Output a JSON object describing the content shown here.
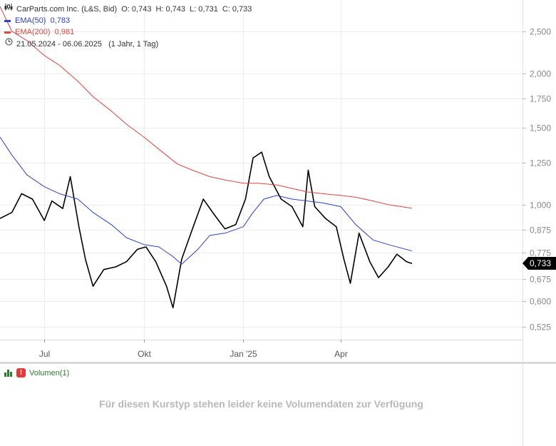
{
  "legend": {
    "title": "CarParts.com Inc. (L&S, Bid)",
    "o_label": "O:",
    "o_value": "0,743",
    "h_label": "H:",
    "h_value": "0,743",
    "l_label": "L:",
    "l_value": "0,731",
    "c_label": "C:",
    "c_value": "0,733",
    "ema50_label": "EMA(50)",
    "ema50_value": "0,783",
    "ema200_label": "EMA(200)",
    "ema200_value": "0,981",
    "range": "21.05.2024 - 06.06.2025",
    "range_info": "(1 Jahr, 1 Tag)"
  },
  "price_tag": "0,733",
  "volume": {
    "label": "Volumen(1)",
    "message": "Für diesen Kurstyp stehen leider keine Volumendaten zur Verfügung"
  },
  "colors": {
    "price": "#000000",
    "ema50": "#2a3fd6",
    "ema200": "#e8423b",
    "grid": "#ececec",
    "warn": "#e53935",
    "vol_icon": "#2e7d32"
  },
  "chart_data": {
    "type": "line",
    "y_scale": "log",
    "ylim": [
      0.49,
      2.95
    ],
    "y_ticks": [
      0.525,
      0.6,
      0.675,
      0.775,
      0.875,
      1.0,
      1.25,
      1.5,
      1.75,
      2.0,
      2.5
    ],
    "y_tick_labels": [
      "0,525",
      "0,600",
      "0,675",
      "0,775",
      "0,875",
      "1,000",
      "1,250",
      "1,500",
      "1,750",
      "2,000",
      "2,500"
    ],
    "x_range": [
      "2024-05-21",
      "2025-06-06"
    ],
    "x_ticks": [
      "2024-07-01",
      "2024-10-01",
      "2025-01-01",
      "2025-04-01"
    ],
    "x_tick_labels": [
      "Jul",
      "Okt",
      "Jan '25",
      "Apr"
    ],
    "series": [
      {
        "name": "CarParts.com Inc. (L&S, Bid)",
        "x": [
          "2024-05-21",
          "2024-06-01",
          "2024-06-10",
          "2024-06-20",
          "2024-07-01",
          "2024-07-08",
          "2024-07-18",
          "2024-07-25",
          "2024-08-02",
          "2024-08-08",
          "2024-08-15",
          "2024-08-25",
          "2024-09-05",
          "2024-09-15",
          "2024-09-25",
          "2024-10-03",
          "2024-10-12",
          "2024-10-22",
          "2024-10-28",
          "2024-11-05",
          "2024-11-15",
          "2024-11-25",
          "2024-12-05",
          "2024-12-15",
          "2024-12-25",
          "2025-01-03",
          "2025-01-10",
          "2025-01-18",
          "2025-01-25",
          "2025-02-05",
          "2025-02-15",
          "2025-02-25",
          "2025-03-02",
          "2025-03-08",
          "2025-03-18",
          "2025-03-28",
          "2025-04-04",
          "2025-04-10",
          "2025-04-18",
          "2025-04-28",
          "2025-05-06",
          "2025-05-15",
          "2025-05-23",
          "2025-06-01",
          "2025-06-06"
        ],
        "y": [
          0.93,
          0.96,
          1.06,
          1.03,
          0.92,
          1.02,
          0.98,
          1.16,
          0.89,
          0.75,
          0.65,
          0.71,
          0.72,
          0.74,
          0.79,
          0.8,
          0.74,
          0.65,
          0.58,
          0.75,
          0.88,
          1.03,
          0.95,
          0.88,
          0.9,
          1.03,
          1.28,
          1.32,
          1.16,
          1.03,
          0.99,
          0.89,
          1.2,
          0.99,
          0.93,
          0.89,
          0.75,
          0.66,
          0.86,
          0.74,
          0.68,
          0.72,
          0.77,
          0.74,
          0.733
        ]
      },
      {
        "name": "EMA(50)",
        "x": [
          "2024-05-21",
          "2024-06-01",
          "2024-06-15",
          "2024-07-01",
          "2024-07-15",
          "2024-08-01",
          "2024-08-15",
          "2024-09-01",
          "2024-09-15",
          "2024-10-01",
          "2024-10-15",
          "2024-10-28",
          "2024-11-05",
          "2024-11-20",
          "2024-12-01",
          "2024-12-15",
          "2025-01-01",
          "2025-01-10",
          "2025-01-20",
          "2025-02-01",
          "2025-02-15",
          "2025-03-01",
          "2025-03-15",
          "2025-04-01",
          "2025-04-15",
          "2025-05-01",
          "2025-05-15",
          "2025-06-06"
        ],
        "y": [
          1.43,
          1.3,
          1.17,
          1.1,
          1.06,
          1.03,
          0.96,
          0.9,
          0.84,
          0.81,
          0.8,
          0.76,
          0.73,
          0.79,
          0.85,
          0.86,
          0.89,
          0.96,
          1.03,
          1.05,
          1.03,
          1.02,
          1.01,
          0.99,
          0.9,
          0.83,
          0.81,
          0.783
        ]
      },
      {
        "name": "EMA(200)",
        "x": [
          "2024-05-21",
          "2024-06-01",
          "2024-06-15",
          "2024-07-01",
          "2024-07-15",
          "2024-08-01",
          "2024-08-15",
          "2024-09-01",
          "2024-09-15",
          "2024-10-01",
          "2024-10-15",
          "2024-11-01",
          "2024-11-15",
          "2024-12-01",
          "2024-12-15",
          "2025-01-01",
          "2025-01-15",
          "2025-02-01",
          "2025-02-15",
          "2025-03-01",
          "2025-03-15",
          "2025-04-01",
          "2025-04-15",
          "2025-05-01",
          "2025-05-15",
          "2025-06-06"
        ],
        "y": [
          2.85,
          2.5,
          2.38,
          2.2,
          2.09,
          1.92,
          1.77,
          1.64,
          1.53,
          1.43,
          1.34,
          1.24,
          1.2,
          1.16,
          1.14,
          1.12,
          1.12,
          1.11,
          1.09,
          1.07,
          1.06,
          1.05,
          1.04,
          1.02,
          1.0,
          0.981
        ]
      }
    ]
  }
}
